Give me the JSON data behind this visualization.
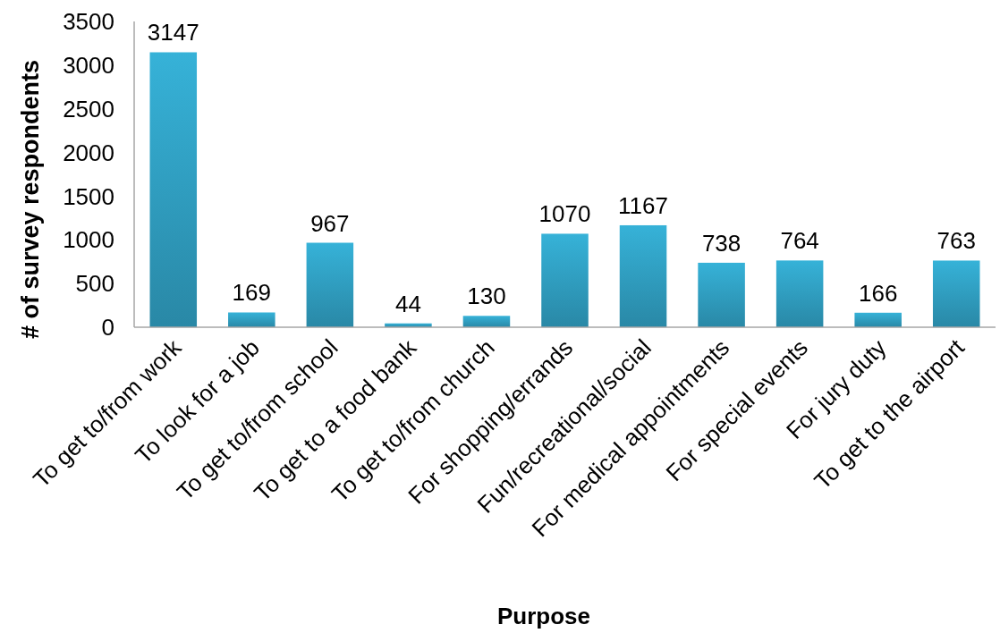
{
  "chart_data": {
    "type": "bar",
    "categories": [
      "To get to/from work",
      "To look for a job",
      "To get to/from school",
      "To get to a food bank",
      "To get to/from church",
      "For shopping/errands",
      "Fun/recreational/social",
      "For medical appointments",
      "For special events",
      "For jury duty",
      "To get to the airport"
    ],
    "values": [
      3147,
      169,
      967,
      44,
      130,
      1070,
      1167,
      738,
      764,
      166,
      763
    ],
    "color": "#31a3c6",
    "xlabel": "Purpose",
    "ylabel": "# of survey respondents",
    "ylim": [
      0,
      3500
    ],
    "yticks": [
      0,
      500,
      1000,
      1500,
      2000,
      2500,
      3000,
      3500
    ],
    "data_labels": true
  }
}
